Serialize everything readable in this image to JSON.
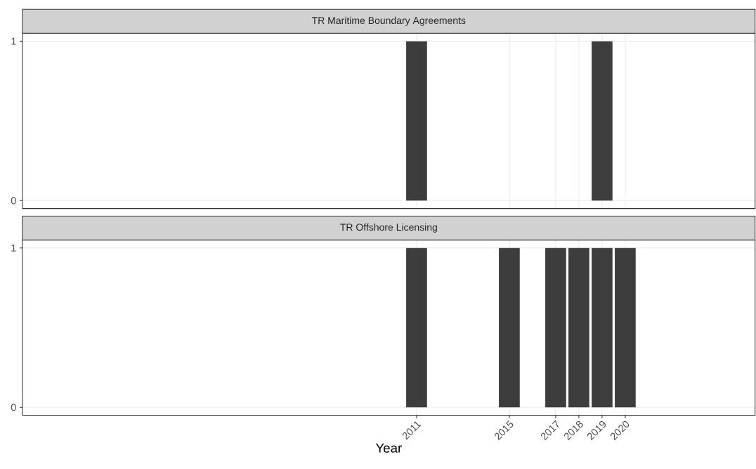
{
  "chart_data": [
    {
      "type": "bar",
      "title": "TR Maritime Boundary Agreements",
      "x": [
        2011,
        2019
      ],
      "values": [
        1,
        1
      ],
      "color": "#3d3d3d",
      "xlim": [
        1994,
        2025.6
      ],
      "xticks": [
        2011,
        2015,
        2017,
        2018,
        2019,
        2020
      ],
      "ylim": [
        -0.05,
        1.05
      ],
      "yticks": [
        0,
        1
      ],
      "grid": true,
      "tick_labels": "y"
    },
    {
      "type": "bar",
      "title": "TR Offshore Licensing",
      "xlabel": "Year",
      "x": [
        2011,
        2015,
        2017,
        2018,
        2019,
        2020
      ],
      "values": [
        1,
        1,
        1,
        1,
        1,
        1
      ],
      "color": "#3d3d3d",
      "xlim": [
        1994,
        2025.6
      ],
      "xticks": [
        2011,
        2015,
        2017,
        2018,
        2019,
        2020
      ],
      "ylim": [
        -0.05,
        1.05
      ],
      "yticks": [
        0,
        1
      ],
      "grid": true
    }
  ]
}
